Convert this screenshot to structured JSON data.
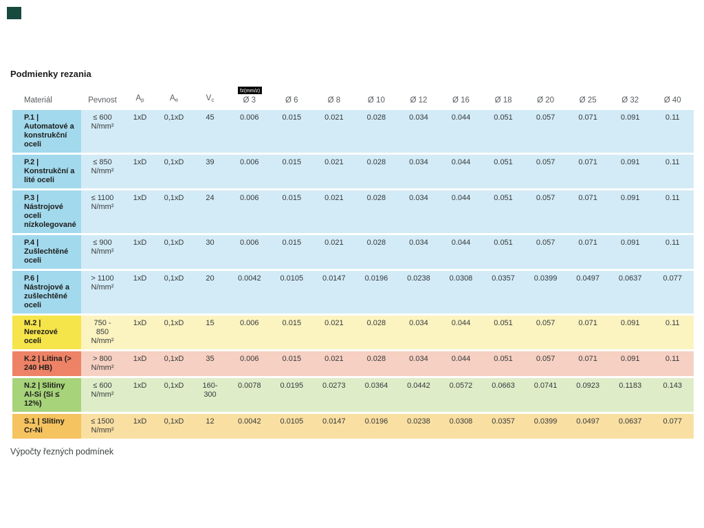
{
  "page": {
    "title": "Podmienky rezania",
    "footer_text": "Výpočty řezných podmínek"
  },
  "colors": {
    "corner_mark": "#17493f",
    "badge_bg": "#0a0a0a",
    "badge_fg": "#ffffff",
    "themes": {
      "blue": {
        "mat": "#a2d9ed",
        "pale": "#d3ebf6"
      },
      "yellow": {
        "mat": "#f6e44b",
        "pale": "#fbf3c0"
      },
      "red": {
        "mat": "#ed8266",
        "pale": "#f6d0c2"
      },
      "green": {
        "mat": "#a7d37a",
        "pale": "#deedc8"
      },
      "orange": {
        "mat": "#f5c35f",
        "pale": "#fadfa2"
      }
    }
  },
  "table": {
    "fz_badge": "fz(mm/z)",
    "headers": {
      "material": "Materiál",
      "pevnost": "Pevnost",
      "ap_main": "A",
      "ap_sub": "p",
      "ae_main": "A",
      "ae_sub": "e",
      "vc_main": "V",
      "vc_sub": "c",
      "diameters": [
        "Ø 3",
        "Ø 6",
        "Ø 8",
        "Ø 10",
        "Ø 12",
        "Ø 16",
        "Ø 18",
        "Ø 20",
        "Ø 25",
        "Ø 32",
        "Ø 40"
      ]
    },
    "rows": [
      {
        "theme": "blue",
        "material": "P.1 | Automatové a konstrukční oceli",
        "pevnost": "≤ 600 N/mm²",
        "ap": "1xD",
        "ae": "0,1xD",
        "vc": "45",
        "fz": [
          "0.006",
          "0.015",
          "0.021",
          "0.028",
          "0.034",
          "0.044",
          "0.051",
          "0.057",
          "0.071",
          "0.091",
          "0.11"
        ]
      },
      {
        "theme": "blue",
        "material": "P.2 | Konstrukční a lité oceli",
        "pevnost": "≤ 850 N/mm²",
        "ap": "1xD",
        "ae": "0,1xD",
        "vc": "39",
        "fz": [
          "0.006",
          "0.015",
          "0.021",
          "0.028",
          "0.034",
          "0.044",
          "0.051",
          "0.057",
          "0.071",
          "0.091",
          "0.11"
        ]
      },
      {
        "theme": "blue",
        "material": "P.3 | Nástrojové oceli nízkolegované",
        "pevnost": "≤ 1100 N/mm²",
        "ap": "1xD",
        "ae": "0,1xD",
        "vc": "24",
        "fz": [
          "0.006",
          "0.015",
          "0.021",
          "0.028",
          "0.034",
          "0.044",
          "0.051",
          "0.057",
          "0.071",
          "0.091",
          "0.11"
        ]
      },
      {
        "theme": "blue",
        "material": "P.4 | Zušlechtěné oceli",
        "pevnost": "≤ 900 N/mm²",
        "ap": "1xD",
        "ae": "0,1xD",
        "vc": "30",
        "fz": [
          "0.006",
          "0.015",
          "0.021",
          "0.028",
          "0.034",
          "0.044",
          "0.051",
          "0.057",
          "0.071",
          "0.091",
          "0.11"
        ]
      },
      {
        "theme": "blue",
        "material": "P.6 | Nástrojové a zušlechtěné oceli",
        "pevnost": "> 1100 N/mm²",
        "ap": "1xD",
        "ae": "0,1xD",
        "vc": "20",
        "fz": [
          "0.0042",
          "0.0105",
          "0.0147",
          "0.0196",
          "0.0238",
          "0.0308",
          "0.0357",
          "0.0399",
          "0.0497",
          "0.0637",
          "0.077"
        ]
      },
      {
        "theme": "yellow",
        "material": "M.2 | Nerezové oceli",
        "pevnost": "750 - 850 N/mm²",
        "ap": "1xD",
        "ae": "0,1xD",
        "vc": "15",
        "fz": [
          "0.006",
          "0.015",
          "0.021",
          "0.028",
          "0.034",
          "0.044",
          "0.051",
          "0.057",
          "0.071",
          "0.091",
          "0.11"
        ]
      },
      {
        "theme": "red",
        "material": "K.2 | Litina (> 240 HB)",
        "pevnost": "> 800 N/mm²",
        "ap": "1xD",
        "ae": "0,1xD",
        "vc": "35",
        "fz": [
          "0.006",
          "0.015",
          "0.021",
          "0.028",
          "0.034",
          "0.044",
          "0.051",
          "0.057",
          "0.071",
          "0.091",
          "0.11"
        ]
      },
      {
        "theme": "green",
        "material": "N.2 | Slitiny Al-Si (Si ≤ 12%)",
        "pevnost": "≤ 600 N/mm²",
        "ap": "1xD",
        "ae": "0,1xD",
        "vc": "160-300",
        "fz": [
          "0.0078",
          "0.0195",
          "0.0273",
          "0.0364",
          "0.0442",
          "0.0572",
          "0.0663",
          "0.0741",
          "0.0923",
          "0.1183",
          "0.143"
        ]
      },
      {
        "theme": "orange",
        "material": "S.1 | Slitiny Cr-Ni",
        "pevnost": "≤ 1500 N/mm²",
        "ap": "1xD",
        "ae": "0,1xD",
        "vc": "12",
        "fz": [
          "0.0042",
          "0.0105",
          "0.0147",
          "0.0196",
          "0.0238",
          "0.0308",
          "0.0357",
          "0.0399",
          "0.0497",
          "0.0637",
          "0.077"
        ]
      }
    ]
  }
}
